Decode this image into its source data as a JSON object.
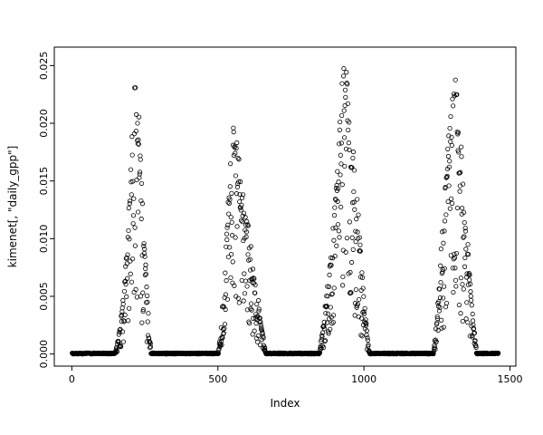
{
  "figure": {
    "background": "#ffffff",
    "foreground": "#000000"
  },
  "chart_data": {
    "type": "scatter",
    "title": "",
    "xlabel": "Index",
    "ylabel": "kimenet[, \"daily_gpp\"]",
    "series_name": "daily_gpp",
    "marker": "open-circle",
    "marker_color": "#000000",
    "grid": false,
    "legend": "none",
    "xlim": [
      -60,
      1520
    ],
    "ylim": [
      -0.00105,
      0.0266
    ],
    "x_ticks": [
      0,
      500,
      1000,
      1500
    ],
    "x_tick_labels": [
      "0",
      "500",
      "1000",
      "1500"
    ],
    "y_ticks": [
      0,
      0.005,
      0.01,
      0.015,
      0.02,
      0.025
    ],
    "y_tick_labels": [
      "0.000",
      "0.005",
      "0.010",
      "0.015",
      "0.020",
      "0.025"
    ],
    "n_points": 1460,
    "pattern_description": "daily GPP time series: four seasonal peaks separated by long zero baselines",
    "envelope": [
      [
        1,
        0
      ],
      [
        148,
        0
      ],
      [
        160,
        0.0015
      ],
      [
        172,
        0.004
      ],
      [
        184,
        0.008
      ],
      [
        196,
        0.013
      ],
      [
        206,
        0.019
      ],
      [
        214,
        0.0235
      ],
      [
        220,
        0.0255
      ],
      [
        228,
        0.0225
      ],
      [
        238,
        0.016
      ],
      [
        248,
        0.01
      ],
      [
        258,
        0.0055
      ],
      [
        266,
        0.002
      ],
      [
        272,
        0
      ],
      [
        502,
        0
      ],
      [
        514,
        0.004
      ],
      [
        526,
        0.01
      ],
      [
        538,
        0.016
      ],
      [
        550,
        0.0205
      ],
      [
        565,
        0.019
      ],
      [
        582,
        0.0155
      ],
      [
        600,
        0.012
      ],
      [
        620,
        0.008
      ],
      [
        640,
        0.0045
      ],
      [
        656,
        0.0015
      ],
      [
        664,
        0
      ],
      [
        848,
        0
      ],
      [
        862,
        0.003
      ],
      [
        878,
        0.007
      ],
      [
        895,
        0.012
      ],
      [
        912,
        0.018
      ],
      [
        928,
        0.0255
      ],
      [
        944,
        0.0245
      ],
      [
        958,
        0.021
      ],
      [
        972,
        0.016
      ],
      [
        986,
        0.01
      ],
      [
        1000,
        0.005
      ],
      [
        1012,
        0.0015
      ],
      [
        1020,
        0
      ],
      [
        1238,
        0
      ],
      [
        1252,
        0.004
      ],
      [
        1266,
        0.01
      ],
      [
        1280,
        0.016
      ],
      [
        1295,
        0.021
      ],
      [
        1310,
        0.0245
      ],
      [
        1322,
        0.022
      ],
      [
        1336,
        0.017
      ],
      [
        1350,
        0.012
      ],
      [
        1363,
        0.007
      ],
      [
        1375,
        0.003
      ],
      [
        1386,
        0
      ],
      [
        1460,
        0
      ]
    ],
    "noise": {
      "seed": 20240501,
      "base_min": 0.72,
      "base_span": 0.28,
      "drop_prob": 0.4,
      "drop_min": 0.22,
      "drop_span": 0.62,
      "jitter_abs": 0.00015,
      "baseline_jitter": 0.0001
    },
    "peak_maxima": [
      0.0255,
      0.0205,
      0.0255,
      0.0245
    ]
  }
}
